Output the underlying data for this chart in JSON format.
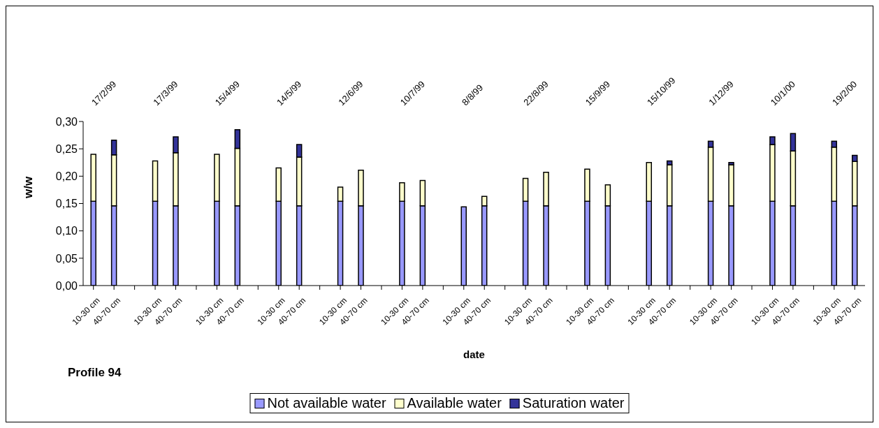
{
  "chart_data": {
    "type": "bar",
    "title": "Profile 94",
    "xlabel": "date",
    "ylabel": "w/w",
    "categories": [
      "10-30 cm",
      "40-70 cm",
      null,
      "10-30 cm",
      "40-70 cm",
      null,
      "10-30 cm",
      "40-70 cm",
      null,
      "10-30 cm",
      "40-70 cm",
      null,
      "10-30 cm",
      "40-70 cm",
      null,
      "10-30 cm",
      "40-70 cm",
      null,
      "10-30 cm",
      "40-70 cm",
      null,
      "10-30 cm",
      "40-70 cm",
      null,
      "10-30 cm",
      "40-70 cm",
      null,
      "10-30 cm",
      "40-70 cm",
      null,
      "10-30 cm",
      "40-70 cm",
      null,
      "10-30 cm",
      "40-70 cm",
      null,
      "10-30 cm",
      "40-70 cm"
    ],
    "series": [
      {
        "name": "Not available water",
        "color": "#9999ff",
        "values": [
          0.154,
          0.146,
          null,
          0.154,
          0.146,
          null,
          0.154,
          0.146,
          null,
          0.154,
          0.146,
          null,
          0.154,
          0.146,
          null,
          0.154,
          0.146,
          null,
          0.144,
          0.146,
          null,
          0.154,
          0.146,
          null,
          0.154,
          0.146,
          null,
          0.154,
          0.146,
          null,
          0.154,
          0.146,
          null,
          0.154,
          0.146,
          null,
          0.154,
          0.146
        ]
      },
      {
        "name": "Available water",
        "color": "#ffffcc",
        "values": [
          0.086,
          0.093,
          null,
          0.074,
          0.097,
          null,
          0.086,
          0.105,
          null,
          0.061,
          0.089,
          null,
          0.026,
          0.065,
          null,
          0.034,
          0.046,
          null,
          null,
          0.017,
          null,
          0.042,
          0.061,
          null,
          0.059,
          0.038,
          null,
          0.071,
          0.075,
          null,
          0.099,
          0.075,
          null,
          0.104,
          0.1,
          null,
          0.099,
          0.081
        ]
      },
      {
        "name": "Saturation water",
        "color": "#333399",
        "values": [
          null,
          0.027,
          null,
          null,
          0.029,
          null,
          null,
          0.034,
          null,
          null,
          0.023,
          null,
          null,
          null,
          null,
          null,
          null,
          null,
          null,
          null,
          null,
          null,
          null,
          null,
          null,
          null,
          null,
          null,
          0.007,
          null,
          0.011,
          0.004,
          null,
          0.014,
          0.032,
          null,
          0.011,
          0.011
        ]
      }
    ],
    "stacked": true,
    "ylim": [
      0,
      0.3
    ],
    "yticks": [
      {
        "value": 0,
        "label": "0,00"
      },
      {
        "value": 0.05,
        "label": "0,05"
      },
      {
        "value": 0.1,
        "label": "0,10"
      },
      {
        "value": 0.15,
        "label": "0,15"
      },
      {
        "value": 0.2,
        "label": "0,20"
      },
      {
        "value": 0.25,
        "label": "0,25"
      },
      {
        "value": 0.3,
        "label": "0,30"
      }
    ],
    "annotations": [
      "17/2/99",
      "17/3/99",
      "15/4/99",
      "14/5/99",
      "12/6/99",
      "10/7/99",
      "8/8/99",
      "22/8/99",
      "15/9/99",
      "15/10/99",
      "1/12/99",
      "10/1/00",
      "19/2/00"
    ],
    "grid": false,
    "legend": "bottom"
  }
}
